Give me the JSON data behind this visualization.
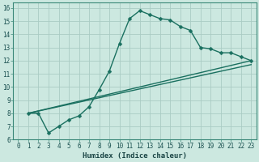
{
  "xlabel": "Humidex (Indice chaleur)",
  "background_color": "#cce8e0",
  "grid_color": "#aaccc4",
  "line_color": "#1a7060",
  "spine_color": "#3a8878",
  "xlim": [
    -0.5,
    23.5
  ],
  "ylim": [
    6,
    16.4
  ],
  "xticks": [
    0,
    1,
    2,
    3,
    4,
    5,
    6,
    7,
    8,
    9,
    10,
    11,
    12,
    13,
    14,
    15,
    16,
    17,
    18,
    19,
    20,
    21,
    22,
    23
  ],
  "yticks": [
    6,
    7,
    8,
    9,
    10,
    11,
    12,
    13,
    14,
    15,
    16
  ],
  "series": [
    {
      "x": [
        1,
        2,
        3,
        4,
        5,
        6,
        7,
        8,
        9,
        10,
        11,
        12,
        13,
        14,
        15,
        16,
        17,
        18,
        19,
        20,
        21,
        22,
        23
      ],
      "y": [
        8.0,
        8.0,
        6.5,
        7.0,
        7.5,
        7.8,
        8.5,
        9.8,
        11.2,
        13.3,
        15.2,
        15.8,
        15.5,
        15.2,
        15.1,
        14.6,
        14.3,
        13.0,
        12.9,
        12.6,
        12.6,
        12.3,
        12.0
      ],
      "has_marker": true,
      "markersize": 2.5,
      "linewidth": 1.0
    },
    {
      "x": [
        1,
        23
      ],
      "y": [
        8.0,
        12.0
      ],
      "has_marker": false,
      "markersize": 0,
      "linewidth": 1.0
    },
    {
      "x": [
        1,
        23
      ],
      "y": [
        8.0,
        11.7
      ],
      "has_marker": false,
      "markersize": 0,
      "linewidth": 1.0
    }
  ],
  "tick_fontsize": 5.5,
  "xlabel_fontsize": 6.5,
  "xlabel_fontweight": "bold"
}
